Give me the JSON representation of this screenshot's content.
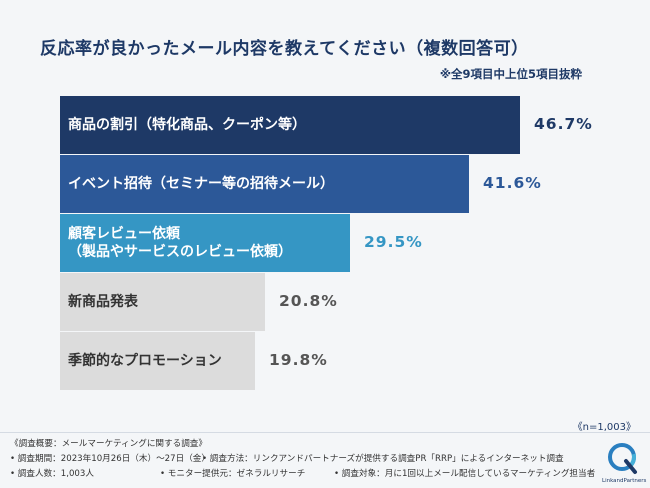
{
  "title": "反応率が良かったメール内容を教えてください（複数回答可）",
  "subtitle": "※全9項目中上位5項目抜粋",
  "sample_size": "《n=1,003》",
  "chart_data": {
    "type": "bar",
    "orientation": "horizontal",
    "title": "反応率が良かったメール内容を教えてください（複数回答可）",
    "categories": [
      "商品の割引（特化商品、クーポン等）",
      "イベント招待（セミナー等の招待メール）",
      "顧客レビュー依頼\n（製品やサービスのレビュー依頼）",
      "新商品発表",
      "季節的なプロモーション"
    ],
    "values": [
      46.7,
      41.6,
      29.5,
      20.8,
      19.8
    ],
    "value_labels": [
      "46.7%",
      "41.6%",
      "29.5%",
      "20.8%",
      "19.8%"
    ],
    "unit": "%",
    "xlim": [
      0,
      50
    ],
    "grid": false,
    "legend": "none",
    "bar_colors": [
      "#1e3966",
      "#2c5898",
      "#3596c4",
      "#dcdcdc",
      "#dcdcdc"
    ],
    "label_colors": [
      "#ffffff",
      "#ffffff",
      "#ffffff",
      "#333333",
      "#333333"
    ],
    "value_colors": [
      "#1e3966",
      "#2c5898",
      "#3596c4",
      "#555555",
      "#555555"
    ]
  },
  "notes": {
    "heading": "《調査概要：メールマーケティングに関する調査》",
    "period": "• 調査期間：2023年10月26日（木）〜27日（金）",
    "method": "• 調査方法：リンクアンドパートナーズが提供する調査PR「RRP」によるインターネット調査",
    "count": "• 調査人数：1,003人",
    "provider": "• モニター提供元：ゼネラルリサーチ",
    "target": "• 調査対象：月に1回以上メール配信しているマーケティング担当者"
  },
  "logo": {
    "text": "LinkandPartners",
    "icon": "link-and-partners-logo-icon"
  }
}
